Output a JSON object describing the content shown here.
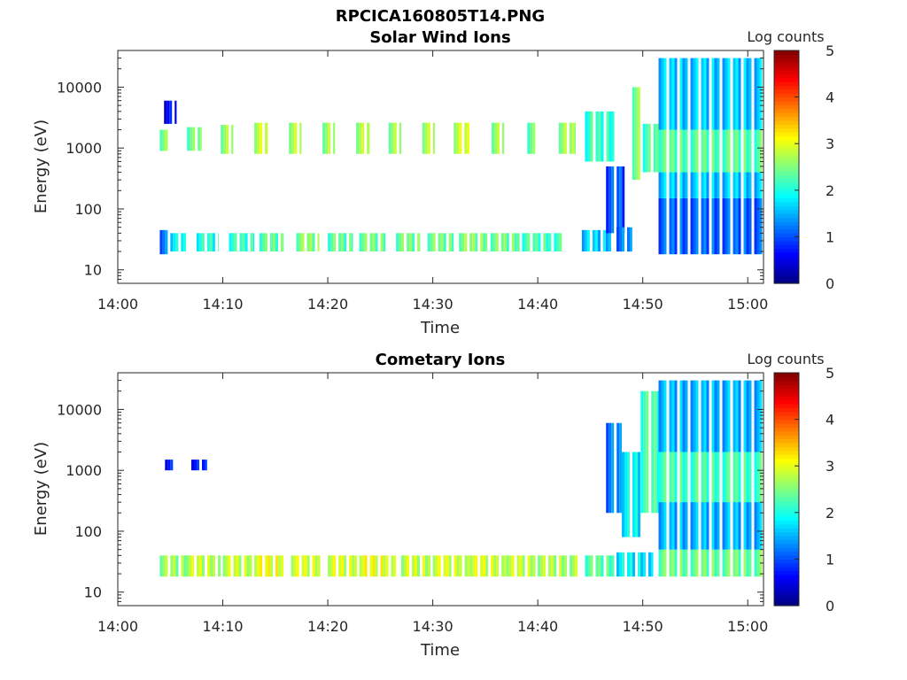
{
  "figure": {
    "title": "RPCICA160805T14.PNG"
  },
  "colormap": {
    "name": "jet",
    "stops": [
      "#00007f",
      "#0000ff",
      "#007fff",
      "#00ffff",
      "#7fff7f",
      "#ffff00",
      "#ff7f00",
      "#ff0000",
      "#7f0000"
    ]
  },
  "chart_data": [
    {
      "type": "heatmap",
      "title": "Solar Wind Ions",
      "xlabel": "Time",
      "ylabel": "Energy (eV)",
      "x_ticks": [
        "14:00",
        "14:10",
        "14:20",
        "14:30",
        "14:40",
        "14:50",
        "15:00"
      ],
      "x_tick_minutes": [
        0,
        10,
        20,
        30,
        40,
        50,
        60
      ],
      "xlim_minutes": [
        0,
        61.5
      ],
      "y_scale": "log",
      "y_ticks": [
        "10",
        "100",
        "1000",
        "10000"
      ],
      "y_tick_values": [
        10,
        100,
        1000,
        10000
      ],
      "ylim": [
        6,
        40000
      ],
      "colorbar": {
        "label": "Log counts",
        "ticks": [
          "0",
          "1",
          "2",
          "3",
          "4",
          "5"
        ],
        "range": [
          0,
          5
        ]
      },
      "blobs": [
        {
          "t": [
            4.0,
            5.0
          ],
          "e": [
            900,
            2000
          ],
          "c": 2.5
        },
        {
          "t": [
            4.0,
            5.0
          ],
          "e": [
            18,
            45
          ],
          "c": 1.2
        },
        {
          "t": [
            4.4,
            5.6
          ],
          "e": [
            2500,
            6000
          ],
          "c": 0.6
        },
        {
          "t": [
            5.0,
            6.5
          ],
          "e": [
            20,
            40
          ],
          "c": 1.8
        },
        {
          "t": [
            6.6,
            8.0
          ],
          "e": [
            900,
            2200
          ],
          "c": 2.4
        },
        {
          "t": [
            7.5,
            9.6
          ],
          "e": [
            20,
            40
          ],
          "c": 2.0
        },
        {
          "t": [
            9.8,
            11.0
          ],
          "e": [
            800,
            2400
          ],
          "c": 2.6
        },
        {
          "t": [
            10.6,
            13.0
          ],
          "e": [
            20,
            40
          ],
          "c": 2.1
        },
        {
          "t": [
            13.0,
            14.3
          ],
          "e": [
            800,
            2600
          ],
          "c": 2.8
        },
        {
          "t": [
            13.5,
            15.8
          ],
          "e": [
            20,
            40
          ],
          "c": 2.3
        },
        {
          "t": [
            16.3,
            17.5
          ],
          "e": [
            800,
            2600
          ],
          "c": 2.7
        },
        {
          "t": [
            17.0,
            19.2
          ],
          "e": [
            20,
            40
          ],
          "c": 2.5
        },
        {
          "t": [
            19.5,
            20.7
          ],
          "e": [
            800,
            2600
          ],
          "c": 2.6
        },
        {
          "t": [
            20.0,
            22.4
          ],
          "e": [
            20,
            40
          ],
          "c": 2.3
        },
        {
          "t": [
            22.7,
            24.0
          ],
          "e": [
            800,
            2600
          ],
          "c": 2.7
        },
        {
          "t": [
            23.0,
            25.5
          ],
          "e": [
            20,
            40
          ],
          "c": 2.4
        },
        {
          "t": [
            25.8,
            27.0
          ],
          "e": [
            800,
            2600
          ],
          "c": 2.6
        },
        {
          "t": [
            26.5,
            28.8
          ],
          "e": [
            20,
            40
          ],
          "c": 2.4
        },
        {
          "t": [
            29.0,
            30.2
          ],
          "e": [
            800,
            2600
          ],
          "c": 2.7
        },
        {
          "t": [
            29.5,
            32.0
          ],
          "e": [
            20,
            40
          ],
          "c": 2.4
        },
        {
          "t": [
            32.0,
            33.5
          ],
          "e": [
            800,
            2600
          ],
          "c": 2.8
        },
        {
          "t": [
            32.5,
            35.2
          ],
          "e": [
            20,
            40
          ],
          "c": 2.5
        },
        {
          "t": [
            35.6,
            36.8
          ],
          "e": [
            800,
            2600
          ],
          "c": 2.6
        },
        {
          "t": [
            35.5,
            38.5
          ],
          "e": [
            20,
            40
          ],
          "c": 2.4
        },
        {
          "t": [
            39.0,
            40.0
          ],
          "e": [
            800,
            2600
          ],
          "c": 2.4
        },
        {
          "t": [
            38.5,
            42.5
          ],
          "e": [
            20,
            40
          ],
          "c": 2.2
        },
        {
          "t": [
            42.0,
            43.6
          ],
          "e": [
            800,
            2600
          ],
          "c": 2.6
        },
        {
          "t": [
            44.2,
            47.2
          ],
          "e": [
            20,
            45
          ],
          "c": 1.6
        },
        {
          "t": [
            44.5,
            47.5
          ],
          "e": [
            600,
            4000
          ],
          "c": 2.1
        },
        {
          "t": [
            46.5,
            48.5
          ],
          "e": [
            40,
            500
          ],
          "c": 1.0
        },
        {
          "t": [
            47.5,
            49.0
          ],
          "e": [
            20,
            50
          ],
          "c": 1.2
        },
        {
          "t": [
            49.0,
            50.0
          ],
          "e": [
            300,
            10000
          ],
          "c": 2.5
        },
        {
          "t": [
            50.0,
            51.5
          ],
          "e": [
            400,
            2500
          ],
          "c": 2.2
        },
        {
          "t": [
            51.5,
            61.5
          ],
          "e": [
            18,
            150
          ],
          "c": 1.1
        },
        {
          "t": [
            51.5,
            61.5
          ],
          "e": [
            150,
            30000
          ],
          "c": 1.6
        },
        {
          "t": [
            51.5,
            61.5
          ],
          "e": [
            400,
            2000
          ],
          "c": 2.3
        }
      ]
    },
    {
      "type": "heatmap",
      "title": "Cometary Ions",
      "xlabel": "Time",
      "ylabel": "Energy (eV)",
      "x_ticks": [
        "14:00",
        "14:10",
        "14:20",
        "14:30",
        "14:40",
        "14:50",
        "15:00"
      ],
      "x_tick_minutes": [
        0,
        10,
        20,
        30,
        40,
        50,
        60
      ],
      "xlim_minutes": [
        0,
        61.5
      ],
      "y_scale": "log",
      "y_ticks": [
        "10",
        "100",
        "1000",
        "10000"
      ],
      "y_tick_values": [
        10,
        100,
        1000,
        10000
      ],
      "ylim": [
        6,
        40000
      ],
      "colorbar": {
        "label": "Log counts",
        "ticks": [
          "0",
          "1",
          "2",
          "3",
          "4",
          "5"
        ],
        "range": [
          0,
          5
        ]
      },
      "blobs": [
        {
          "t": [
            4.0,
            6.5
          ],
          "e": [
            18,
            40
          ],
          "c": 2.6
        },
        {
          "t": [
            6.5,
            9.8
          ],
          "e": [
            18,
            40
          ],
          "c": 2.8
        },
        {
          "t": [
            4.5,
            5.5
          ],
          "e": [
            1000,
            1500
          ],
          "c": 0.7
        },
        {
          "t": [
            7.0,
            8.5
          ],
          "e": [
            1000,
            1500
          ],
          "c": 0.7
        },
        {
          "t": [
            10.0,
            13.0
          ],
          "e": [
            18,
            40
          ],
          "c": 2.8
        },
        {
          "t": [
            13.0,
            16.0
          ],
          "e": [
            18,
            40
          ],
          "c": 3.0
        },
        {
          "t": [
            16.5,
            19.5
          ],
          "e": [
            18,
            40
          ],
          "c": 2.9
        },
        {
          "t": [
            20.0,
            23.0
          ],
          "e": [
            18,
            40
          ],
          "c": 2.9
        },
        {
          "t": [
            23.0,
            26.5
          ],
          "e": [
            18,
            40
          ],
          "c": 3.0
        },
        {
          "t": [
            27.0,
            30.0
          ],
          "e": [
            18,
            40
          ],
          "c": 2.8
        },
        {
          "t": [
            30.0,
            33.5
          ],
          "e": [
            18,
            40
          ],
          "c": 2.9
        },
        {
          "t": [
            33.5,
            37.0
          ],
          "e": [
            18,
            40
          ],
          "c": 2.9
        },
        {
          "t": [
            37.0,
            40.0
          ],
          "e": [
            18,
            40
          ],
          "c": 2.8
        },
        {
          "t": [
            40.0,
            44.0
          ],
          "e": [
            18,
            40
          ],
          "c": 2.7
        },
        {
          "t": [
            44.5,
            47.5
          ],
          "e": [
            18,
            40
          ],
          "c": 2.3
        },
        {
          "t": [
            47.5,
            51.0
          ],
          "e": [
            18,
            45
          ],
          "c": 1.8
        },
        {
          "t": [
            46.5,
            48.0
          ],
          "e": [
            200,
            6000
          ],
          "c": 1.2
        },
        {
          "t": [
            48.0,
            50.0
          ],
          "e": [
            80,
            2000
          ],
          "c": 1.8
        },
        {
          "t": [
            49.8,
            51.5
          ],
          "e": [
            200,
            20000
          ],
          "c": 2.2
        },
        {
          "t": [
            51.5,
            61.5
          ],
          "e": [
            18,
            50
          ],
          "c": 2.4
        },
        {
          "t": [
            51.5,
            61.5
          ],
          "e": [
            50,
            30000
          ],
          "c": 1.5
        },
        {
          "t": [
            51.5,
            61.5
          ],
          "e": [
            300,
            2000
          ],
          "c": 2.2
        }
      ]
    }
  ]
}
